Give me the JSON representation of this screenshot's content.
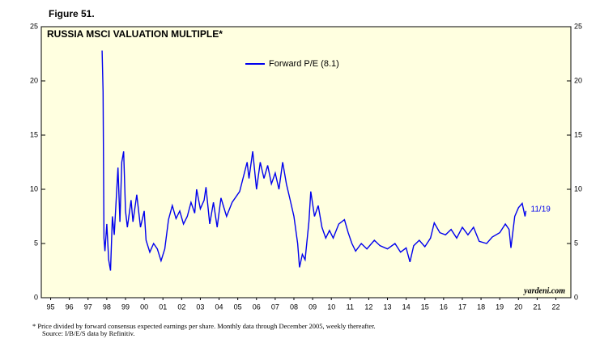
{
  "figure_label": "Figure 51.",
  "chart_data": {
    "type": "line",
    "title": "RUSSIA MSCI VALUATION MULTIPLE*",
    "x": [
      1998.25,
      1998.3,
      1998.35,
      1998.4,
      1998.5,
      1998.6,
      1998.7,
      1998.8,
      1998.9,
      1999.1,
      1999.2,
      1999.3,
      1999.4,
      1999.5,
      1999.6,
      1999.8,
      1999.9,
      2000.1,
      2000.3,
      2000.5,
      2000.6,
      2000.8,
      2001.0,
      2001.2,
      2001.4,
      2001.6,
      2001.8,
      2002.0,
      2002.2,
      2002.4,
      2002.6,
      2002.8,
      2003.0,
      2003.2,
      2003.3,
      2003.5,
      2003.7,
      2003.8,
      2004.0,
      2004.2,
      2004.4,
      2004.6,
      2004.9,
      2005.2,
      2005.6,
      2006.0,
      2006.1,
      2006.3,
      2006.5,
      2006.7,
      2006.9,
      2007.1,
      2007.3,
      2007.5,
      2007.7,
      2007.9,
      2008.1,
      2008.3,
      2008.5,
      2008.7,
      2008.8,
      2008.95,
      2009.1,
      2009.3,
      2009.4,
      2009.6,
      2009.8,
      2010.0,
      2010.2,
      2010.4,
      2010.6,
      2010.9,
      2011.2,
      2011.4,
      2011.6,
      2011.8,
      2012.1,
      2012.4,
      2012.8,
      2013.1,
      2013.5,
      2013.9,
      2014.2,
      2014.5,
      2014.7,
      2014.9,
      2015.2,
      2015.5,
      2015.8,
      2016.0,
      2016.3,
      2016.6,
      2016.9,
      2017.2,
      2017.5,
      2017.8,
      2018.1,
      2018.4,
      2018.8,
      2019.1,
      2019.5,
      2019.8,
      2020.0,
      2020.1,
      2020.3,
      2020.5,
      2020.7,
      2020.85,
      2020.9
    ],
    "series": [
      {
        "name": "Forward P/E (8.1)",
        "color": "#0000ee",
        "values": [
          22.8,
          19,
          5.5,
          4.3,
          6.8,
          3.5,
          2.5,
          7.5,
          5.8,
          12,
          7,
          12.5,
          13.5,
          8,
          6.5,
          9,
          7,
          9.5,
          6.5,
          8,
          5.3,
          4.2,
          5,
          4.5,
          3.4,
          4.5,
          7.2,
          8.5,
          7.3,
          8,
          6.8,
          7.5,
          8.8,
          7.8,
          10,
          8.2,
          9,
          10.2,
          6.8,
          8.8,
          6.5,
          9.2,
          7.5,
          8.8,
          9.8,
          12.5,
          11,
          13.5,
          10,
          12.5,
          11,
          12.2,
          10.5,
          11.5,
          10,
          12.5,
          10.5,
          9,
          7.5,
          5,
          2.8,
          4,
          3.5,
          7,
          9.8,
          7.5,
          8.5,
          6.5,
          5.5,
          6.2,
          5.5,
          6.8,
          7.2,
          6,
          5,
          4.3,
          5,
          4.5,
          5.3,
          4.8,
          4.5,
          5,
          4.2,
          4.6,
          3.3,
          4.8,
          5.3,
          4.7,
          5.5,
          6.9,
          6,
          5.8,
          6.3,
          5.5,
          6.5,
          5.8,
          6.5,
          5.2,
          5,
          5.6,
          6,
          6.8,
          6.3,
          4.6,
          7.5,
          8.3,
          8.7,
          7.5,
          8
        ]
      }
    ],
    "end_label": "11/19",
    "source_tag": "yardeni.com",
    "xlim": [
      1995,
      2023.3
    ],
    "xticks": [
      {
        "value": 1995.5,
        "label": "95"
      },
      {
        "value": 1996.5,
        "label": "96"
      },
      {
        "value": 1997.5,
        "label": "97"
      },
      {
        "value": 1998.5,
        "label": "98"
      },
      {
        "value": 1999.5,
        "label": "99"
      },
      {
        "value": 2000.5,
        "label": "00"
      },
      {
        "value": 2001.5,
        "label": "01"
      },
      {
        "value": 2002.5,
        "label": "02"
      },
      {
        "value": 2003.5,
        "label": "03"
      },
      {
        "value": 2004.5,
        "label": "04"
      },
      {
        "value": 2005.5,
        "label": "05"
      },
      {
        "value": 2006.5,
        "label": "06"
      },
      {
        "value": 2007.5,
        "label": "07"
      },
      {
        "value": 2008.5,
        "label": "08"
      },
      {
        "value": 2009.5,
        "label": "09"
      },
      {
        "value": 2010.5,
        "label": "10"
      },
      {
        "value": 2011.5,
        "label": "11"
      },
      {
        "value": 2012.5,
        "label": "12"
      },
      {
        "value": 2013.5,
        "label": "13"
      },
      {
        "value": 2014.5,
        "label": "14"
      },
      {
        "value": 2015.5,
        "label": "15"
      },
      {
        "value": 2016.5,
        "label": "16"
      },
      {
        "value": 2017.5,
        "label": "17"
      },
      {
        "value": 2018.5,
        "label": "18"
      },
      {
        "value": 2019.5,
        "label": "19"
      },
      {
        "value": 2020.5,
        "label": "20"
      },
      {
        "value": 2021.5,
        "label": "21"
      },
      {
        "value": 2022.5,
        "label": "22"
      }
    ],
    "ylim": [
      0,
      25
    ],
    "yticks": [
      0,
      5,
      10,
      15,
      20,
      25
    ]
  },
  "footnotes": [
    "*  Price divided by forward consensus expected earnings per share. Monthly data through December 2005, weekly thereafter.",
    "Source: I/B/E/S data by Refinitiv."
  ]
}
